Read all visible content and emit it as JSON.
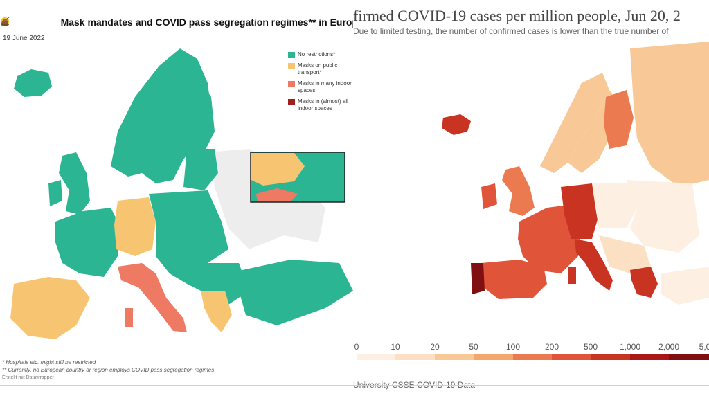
{
  "left": {
    "title": "Mask mandates and COVID pass segregation regimes** in Europ",
    "title_icons": [
      "smiley-icon",
      "mask-face-icon",
      "syringe-icon",
      "poop-icon"
    ],
    "date": "19 June 2022",
    "legend": [
      {
        "label": "No restrictions*",
        "color": "#2bb592"
      },
      {
        "label": "Masks on public transport*",
        "color": "#f7c572"
      },
      {
        "label": "Masks in many indoor spaces",
        "color": "#ee7a64"
      },
      {
        "label": "Masks in (almost) all indoor spaces",
        "color": "#a51d1d"
      }
    ],
    "footnote1": "* Hospitals etc. might still be restricted",
    "footnote2": "** Currently, no European country or region employs COVID pass segregation regimes",
    "credit": "Erstellt mit Datawrapper"
  },
  "right": {
    "title": "firmed COVID-19 cases per million people, Jun 20, 2",
    "subtitle": "Due to limited testing, the number of confirmed cases is lower than the true number of",
    "scale_labels": [
      "0",
      "10",
      "20",
      "50",
      "100",
      "200",
      "500",
      "1,000",
      "2,000",
      "5,0"
    ],
    "scale_colors": [
      "#fdf0e3",
      "#fbe0c4",
      "#f8c996",
      "#f4a76c",
      "#ec7a50",
      "#e0553a",
      "#c93322",
      "#a91717",
      "#7f0f10"
    ],
    "source": "University CSSE COVID-19 Data"
  }
}
